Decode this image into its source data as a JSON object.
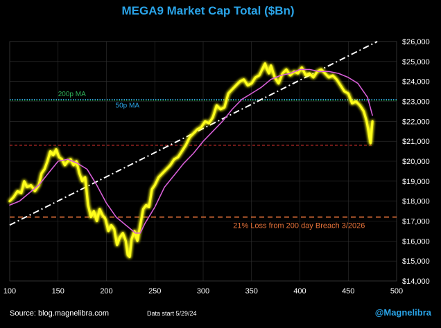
{
  "chart_data": {
    "type": "line",
    "title": "MEGA9 Market Cap Total ($Bn)",
    "xlim": [
      100,
      500
    ],
    "ylim": [
      14000,
      26000
    ],
    "x_ticks": [
      "100",
      "150",
      "200",
      "250",
      "300",
      "350",
      "400",
      "450",
      "500"
    ],
    "y_ticks": [
      "$14,000",
      "$15,000",
      "$16,000",
      "$17,000",
      "$18,000",
      "$19,000",
      "$20,000",
      "$21,000",
      "$22,000",
      "$23,000",
      "$24,000",
      "$25,000",
      "$26,000"
    ],
    "grid": true,
    "series": [
      {
        "color": "#ffff1a",
        "x": [
          100,
          104,
          108,
          112,
          115,
          118,
          122,
          126,
          130,
          133,
          136,
          139,
          142,
          145,
          148,
          151,
          154,
          157,
          160,
          163,
          166,
          169,
          172,
          175,
          178,
          181,
          184,
          187,
          190,
          193,
          196,
          199,
          202,
          205,
          208,
          211,
          214,
          217,
          220,
          222,
          224,
          226,
          229,
          232,
          235,
          238,
          241,
          244,
          247,
          250,
          254,
          258,
          262,
          266,
          270,
          274,
          278,
          282,
          286,
          290,
          294,
          298,
          302,
          306,
          310,
          314,
          318,
          322,
          326,
          330,
          334,
          338,
          342,
          346,
          350,
          354,
          358,
          362,
          364,
          366,
          368,
          370,
          374,
          378,
          382,
          386,
          390,
          394,
          398,
          402,
          406,
          410,
          414,
          418,
          422,
          426,
          430,
          434,
          438,
          442,
          446,
          450,
          454,
          458,
          462,
          466,
          469,
          471,
          473,
          475
        ],
        "y": [
          18000,
          18200,
          18500,
          18400,
          19000,
          18700,
          18800,
          18500,
          18800,
          19400,
          19600,
          20000,
          20500,
          20300,
          20600,
          20200,
          20100,
          19800,
          20000,
          20100,
          19800,
          20000,
          19400,
          19000,
          19200,
          17800,
          17200,
          17500,
          17000,
          17600,
          17300,
          17100,
          16500,
          16800,
          16600,
          15800,
          16200,
          16400,
          16000,
          15300,
          15200,
          16100,
          16500,
          16000,
          16800,
          17600,
          17800,
          17700,
          18600,
          18800,
          19200,
          19400,
          19600,
          19800,
          20100,
          20200,
          20500,
          20800,
          21200,
          21400,
          21600,
          21700,
          22000,
          21900,
          22200,
          22800,
          22600,
          22700,
          23400,
          23600,
          23800,
          24000,
          24100,
          23800,
          23900,
          24200,
          24300,
          24700,
          24900,
          24600,
          24400,
          24800,
          24200,
          23900,
          24400,
          24600,
          24300,
          24500,
          24400,
          24700,
          24300,
          24400,
          24200,
          24500,
          24600,
          24400,
          24200,
          24300,
          24100,
          23800,
          23500,
          23400,
          22900,
          23000,
          22800,
          22500,
          22000,
          21500,
          20900,
          22000
        ]
      },
      {
        "name": "50p MA",
        "color": "#d65ed6",
        "x": [
          100,
          110,
          120,
          130,
          140,
          150,
          160,
          170,
          180,
          190,
          200,
          210,
          220,
          230,
          235,
          240,
          250,
          260,
          270,
          280,
          290,
          300,
          310,
          320,
          330,
          340,
          350,
          360,
          370,
          380,
          390,
          400,
          410,
          420,
          430,
          440,
          450,
          460,
          470,
          475
        ],
        "y": [
          17800,
          18000,
          18400,
          18800,
          19400,
          20000,
          20100,
          19900,
          19600,
          18800,
          17900,
          17200,
          16800,
          16400,
          16400,
          16900,
          17700,
          18700,
          19300,
          19900,
          20400,
          21000,
          21500,
          22000,
          22600,
          23100,
          23400,
          23700,
          24100,
          24300,
          24400,
          24600,
          24600,
          24500,
          24500,
          24400,
          24200,
          23900,
          23200,
          22300
        ]
      }
    ],
    "reference_lines": [
      {
        "name": "200p MA",
        "y": 23050,
        "color": "#2fb35a",
        "style": "dotted"
      },
      {
        "name": "50p MA",
        "y": 23100,
        "color": "#2aa4e8",
        "style": "dotted"
      },
      {
        "name": "",
        "y": 20800,
        "color": "#d0312d",
        "style": "dashed"
      },
      {
        "name": "21% Loss from 200 day Breach 3/2026",
        "y": 17200,
        "color": "#e8733a",
        "style": "dashed"
      }
    ],
    "trendline": {
      "color": "#ffffff",
      "style": "dash-dot",
      "x": [
        100,
        480
      ],
      "y": [
        16800,
        26000
      ]
    }
  },
  "footer": {
    "source": "Source: blog.magnelibra.com",
    "data_start": "Data start 5/29/24",
    "handle": "@Magnelibra"
  }
}
